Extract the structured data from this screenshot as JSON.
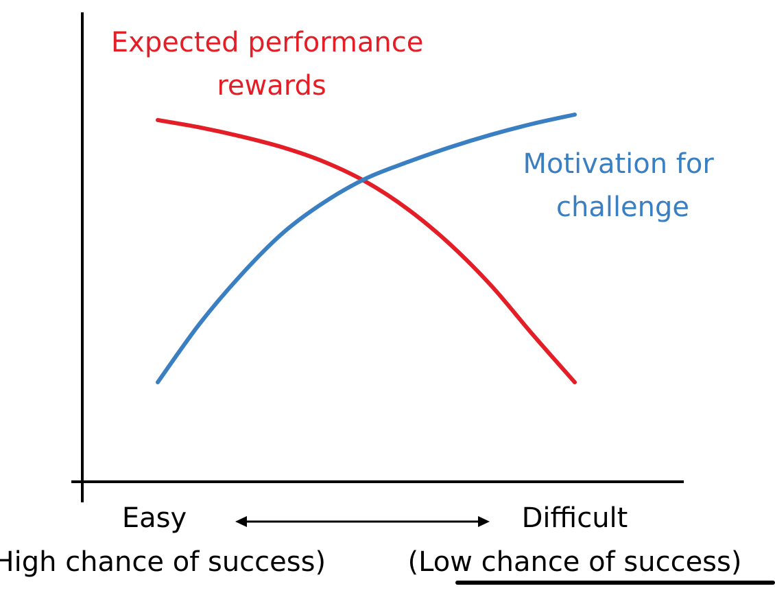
{
  "chart_data": {
    "type": "line",
    "title": "",
    "xlabel": "",
    "ylabel": "",
    "x_axis": {
      "left_label": "Easy",
      "left_sublabel": "(High chance of success)",
      "right_label": "Difficult",
      "right_sublabel": "(Low chance of success)"
    },
    "xlim": [
      0,
      10
    ],
    "ylim": [
      0,
      10
    ],
    "grid": false,
    "legend": "none",
    "series": [
      {
        "name": "Expected performance rewards",
        "color": "#e41e26",
        "x": [
          0,
          1,
          2,
          3,
          4,
          5,
          6,
          7,
          8,
          9,
          10
        ],
        "y": [
          9.3,
          9.1,
          8.85,
          8.55,
          8.15,
          7.6,
          6.85,
          5.9,
          4.75,
          3.4,
          2.1
        ]
      },
      {
        "name": "Motivation for challenge",
        "color": "#3a7fc1",
        "x": [
          0,
          1,
          2,
          3,
          4,
          5,
          6,
          7,
          8,
          9,
          10
        ],
        "y": [
          2.1,
          3.7,
          5.05,
          6.2,
          7.05,
          7.7,
          8.15,
          8.55,
          8.9,
          9.2,
          9.45
        ]
      }
    ]
  }
}
